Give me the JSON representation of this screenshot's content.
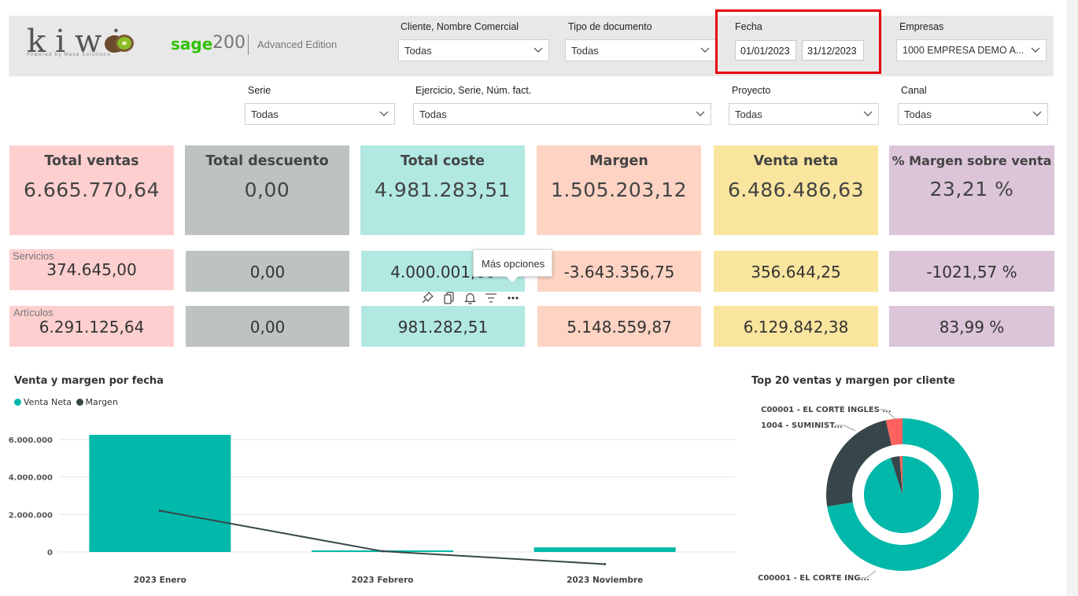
{
  "header": {
    "logo_text": "kiwi",
    "logo_subtitle": "Powered by Mese Solutions",
    "brand_name": "sage",
    "brand_version": "200",
    "brand_edition": "Advanced Edition"
  },
  "filters": {
    "cliente": {
      "label": "Cliente, Nombre Comercial",
      "value": "Todas"
    },
    "tipo_documento": {
      "label": "Tipo de documento",
      "value": "Todas"
    },
    "fecha": {
      "label": "Fecha",
      "from": "01/01/2023",
      "to": "31/12/2023"
    },
    "empresas": {
      "label": "Empresas",
      "value": "1000 EMPRESA DEMO A..."
    },
    "serie": {
      "label": "Serie",
      "value": "Todas"
    },
    "ejercicio": {
      "label": "Ejercicio, Serie, Núm. fact.",
      "value": "Todas"
    },
    "proyecto": {
      "label": "Proyecto",
      "value": "Todas"
    },
    "canal": {
      "label": "Canal",
      "value": "Todas"
    }
  },
  "kpis": [
    {
      "title": "Total ventas",
      "value": "6.665.770,64"
    },
    {
      "title": "Total descuento",
      "value": "0,00"
    },
    {
      "title": "Total coste",
      "value": "4.981.283,51"
    },
    {
      "title": "Margen",
      "value": "1.505.203,12"
    },
    {
      "title": "Venta neta",
      "value": "6.486.486,63"
    },
    {
      "title": "% Margen sobre venta",
      "value": "23,21 %"
    }
  ],
  "servicios": {
    "label": "Servicios",
    "values": [
      "374.645,00",
      "0,00",
      "4.000.001,00",
      "-3.643.356,75",
      "356.644,25",
      "-1021,57 %"
    ]
  },
  "articulos": {
    "label": "Artículos",
    "values": [
      "6.291.125,64",
      "0,00",
      "981.282,51",
      "5.148.559,87",
      "6.129.842,38",
      "83,99 %"
    ]
  },
  "tooltip": {
    "text": "Más opciones"
  },
  "visual_icons": [
    "pin-icon",
    "copy-icon",
    "bell-icon",
    "filter-icon",
    "more-icon"
  ],
  "colors": {
    "teal": "#01b8aa",
    "dark": "#374649",
    "red": "#fd625e",
    "highlight": "#e8000b"
  },
  "chart_data": [
    {
      "type": "bar",
      "title": "Venta y margen por fecha",
      "categories": [
        "2023 Enero",
        "2023 Febrero",
        "2023 Noviembre"
      ],
      "series": [
        {
          "name": "Venta Neta",
          "kind": "bar",
          "color": "#01b8aa",
          "values": [
            6250000,
            65000,
            245000
          ]
        },
        {
          "name": "Margen",
          "kind": "line",
          "color": "#374649",
          "values": [
            2200000,
            40000,
            -650000
          ]
        }
      ],
      "yticks": [
        "6.000.000",
        "4.000.000",
        "2.000.000",
        "0"
      ],
      "ytick_values": [
        6000000,
        4000000,
        2000000,
        0
      ],
      "ylim": [
        -900000,
        7000000
      ],
      "legend": "top-left"
    },
    {
      "type": "pie",
      "title": "Top 20 ventas y margen por cliente",
      "labels": [
        "C00001 - EL CORTE INGLES ...",
        "1004 - SUMINIST...",
        "C00001 - EL CORTE ING..."
      ],
      "outer": [
        {
          "label": "C00001 - EL CORTE ING...",
          "value": 72.5,
          "color": "#01b8aa"
        },
        {
          "label": "1004 - SUMINIST...",
          "value": 24.0,
          "color": "#374649"
        },
        {
          "label": "C00001 - EL CORTE INGLES ...",
          "value": 3.5,
          "color": "#fd625e"
        }
      ],
      "inner": [
        {
          "value": 95.0,
          "color": "#01b8aa"
        },
        {
          "value": 3.8,
          "color": "#374649"
        },
        {
          "value": 1.2,
          "color": "#fd625e"
        }
      ]
    }
  ]
}
